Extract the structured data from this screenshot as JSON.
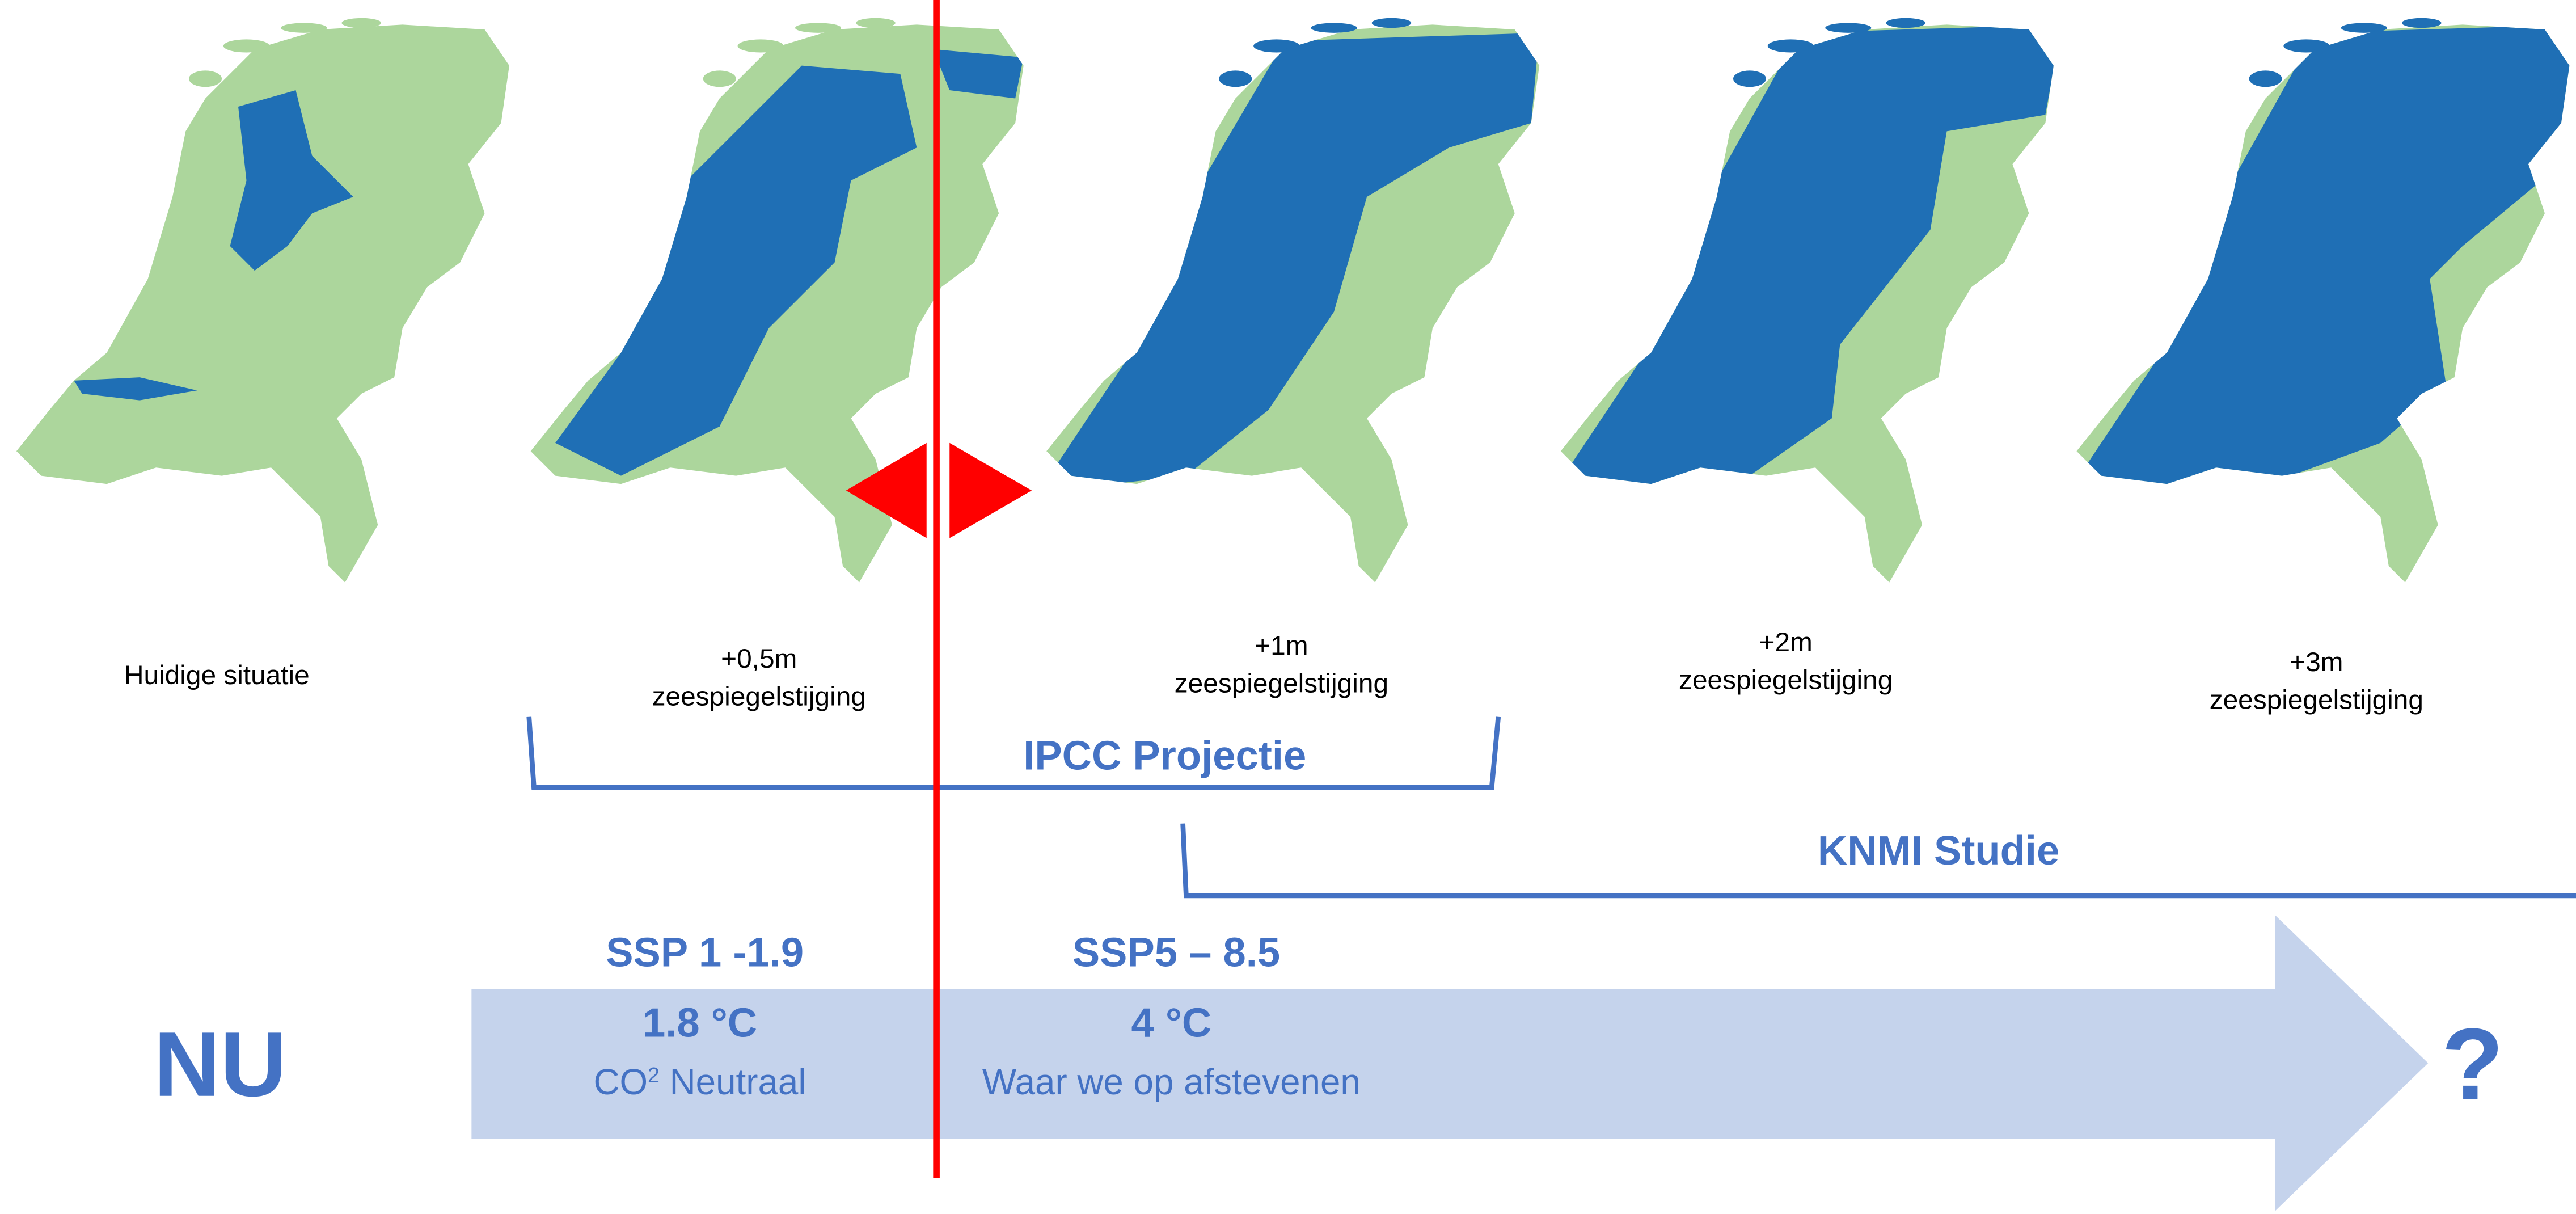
{
  "maps": [
    {
      "caption": [
        "Huidige situatie"
      ]
    },
    {
      "caption": [
        "+0,5m",
        "zeespiegelstijging"
      ]
    },
    {
      "caption": [
        "+1m",
        "zeespiegelstijging"
      ]
    },
    {
      "caption": [
        "+2m",
        "zeespiegelstijging"
      ]
    },
    {
      "caption": [
        "+3m",
        "zeespiegelstijging"
      ]
    }
  ],
  "brackets": {
    "ipcc": "IPCC Projectie",
    "knmi": "KNMI Studie"
  },
  "timeline": {
    "start": "NU",
    "end": "?",
    "scenarios": [
      {
        "name": "SSP 1 -1.9",
        "temperature": "1.8 °C",
        "description": {
          "prefix": "CO",
          "sup": "2",
          "suffix": " Neutraal"
        }
      },
      {
        "name": "SSP5 – 8.5",
        "temperature": "4 °C",
        "description": {
          "prefix": "Waar we op afstevenen"
        }
      }
    ]
  }
}
